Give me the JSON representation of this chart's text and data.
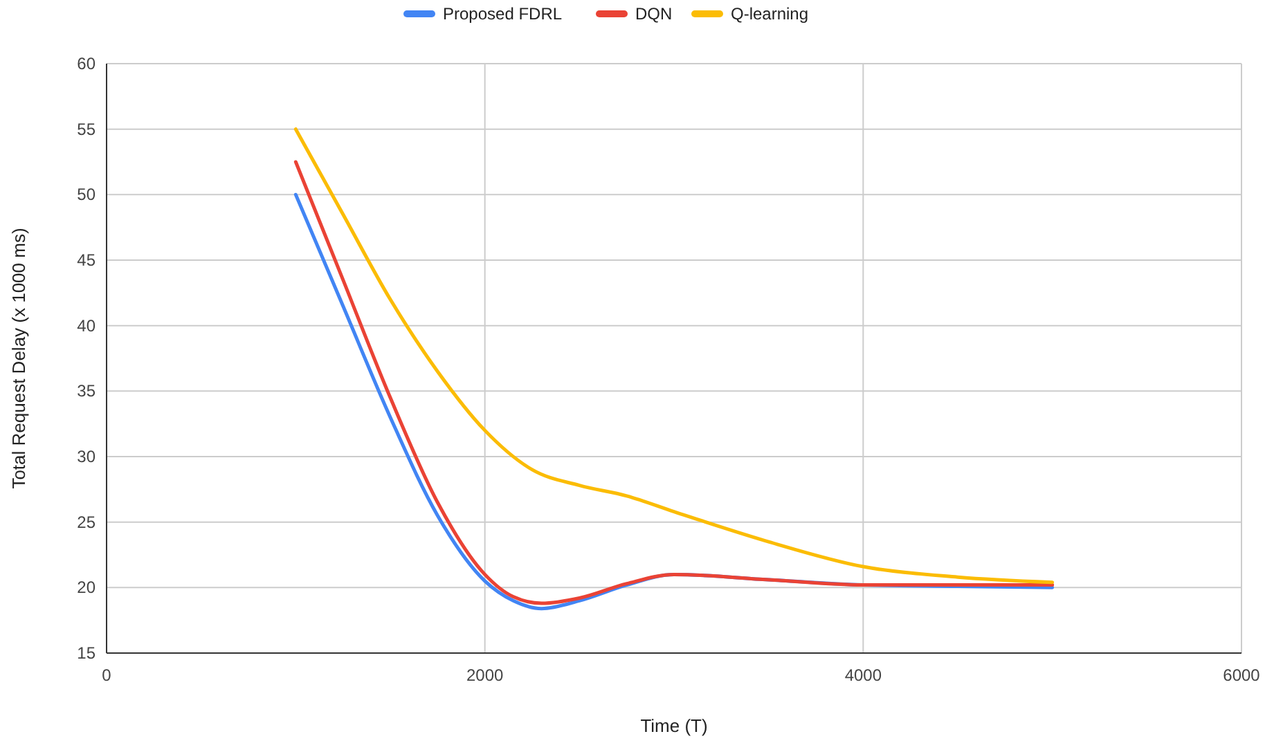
{
  "chart_data": {
    "type": "line",
    "xlabel": "Time (T)",
    "ylabel": "Total Request Delay (x 1000 ms)",
    "xlim": [
      0,
      6000
    ],
    "xticks": [
      0,
      2000,
      4000,
      6000
    ],
    "ylim": [
      15,
      60
    ],
    "yticks": [
      15,
      20,
      25,
      30,
      35,
      40,
      45,
      50,
      55,
      60
    ],
    "grid": true,
    "legend": "top",
    "marker": "none",
    "line_style": "solid",
    "series": [
      {
        "name": "Proposed FDRL",
        "color": "#4285f4",
        "x": [
          1000,
          1250,
          1500,
          1750,
          2000,
          2150,
          2300,
          2500,
          2750,
          3000,
          3500,
          4000,
          4500,
          5000
        ],
        "values": [
          50,
          41.5,
          33,
          25.5,
          20.5,
          19,
          18.4,
          19,
          20.2,
          21,
          20.6,
          20.2,
          20.1,
          20
        ]
      },
      {
        "name": "DQN",
        "color": "#ea4335",
        "x": [
          1000,
          1250,
          1500,
          1750,
          2000,
          2150,
          2300,
          2500,
          2750,
          3000,
          3500,
          4000,
          4500,
          5000
        ],
        "values": [
          52.5,
          43.5,
          34.5,
          26.5,
          21,
          19.3,
          18.8,
          19.2,
          20.3,
          21,
          20.6,
          20.2,
          20.2,
          20.2
        ]
      },
      {
        "name": "Q-learning",
        "color": "#fbbc04",
        "x": [
          1000,
          1250,
          1500,
          1750,
          2000,
          2250,
          2500,
          2750,
          3000,
          3500,
          4000,
          4500,
          5000
        ],
        "values": [
          55,
          48.5,
          42,
          36.5,
          32,
          29,
          27.8,
          27,
          25.8,
          23.5,
          21.6,
          20.8,
          20.4
        ]
      }
    ]
  }
}
